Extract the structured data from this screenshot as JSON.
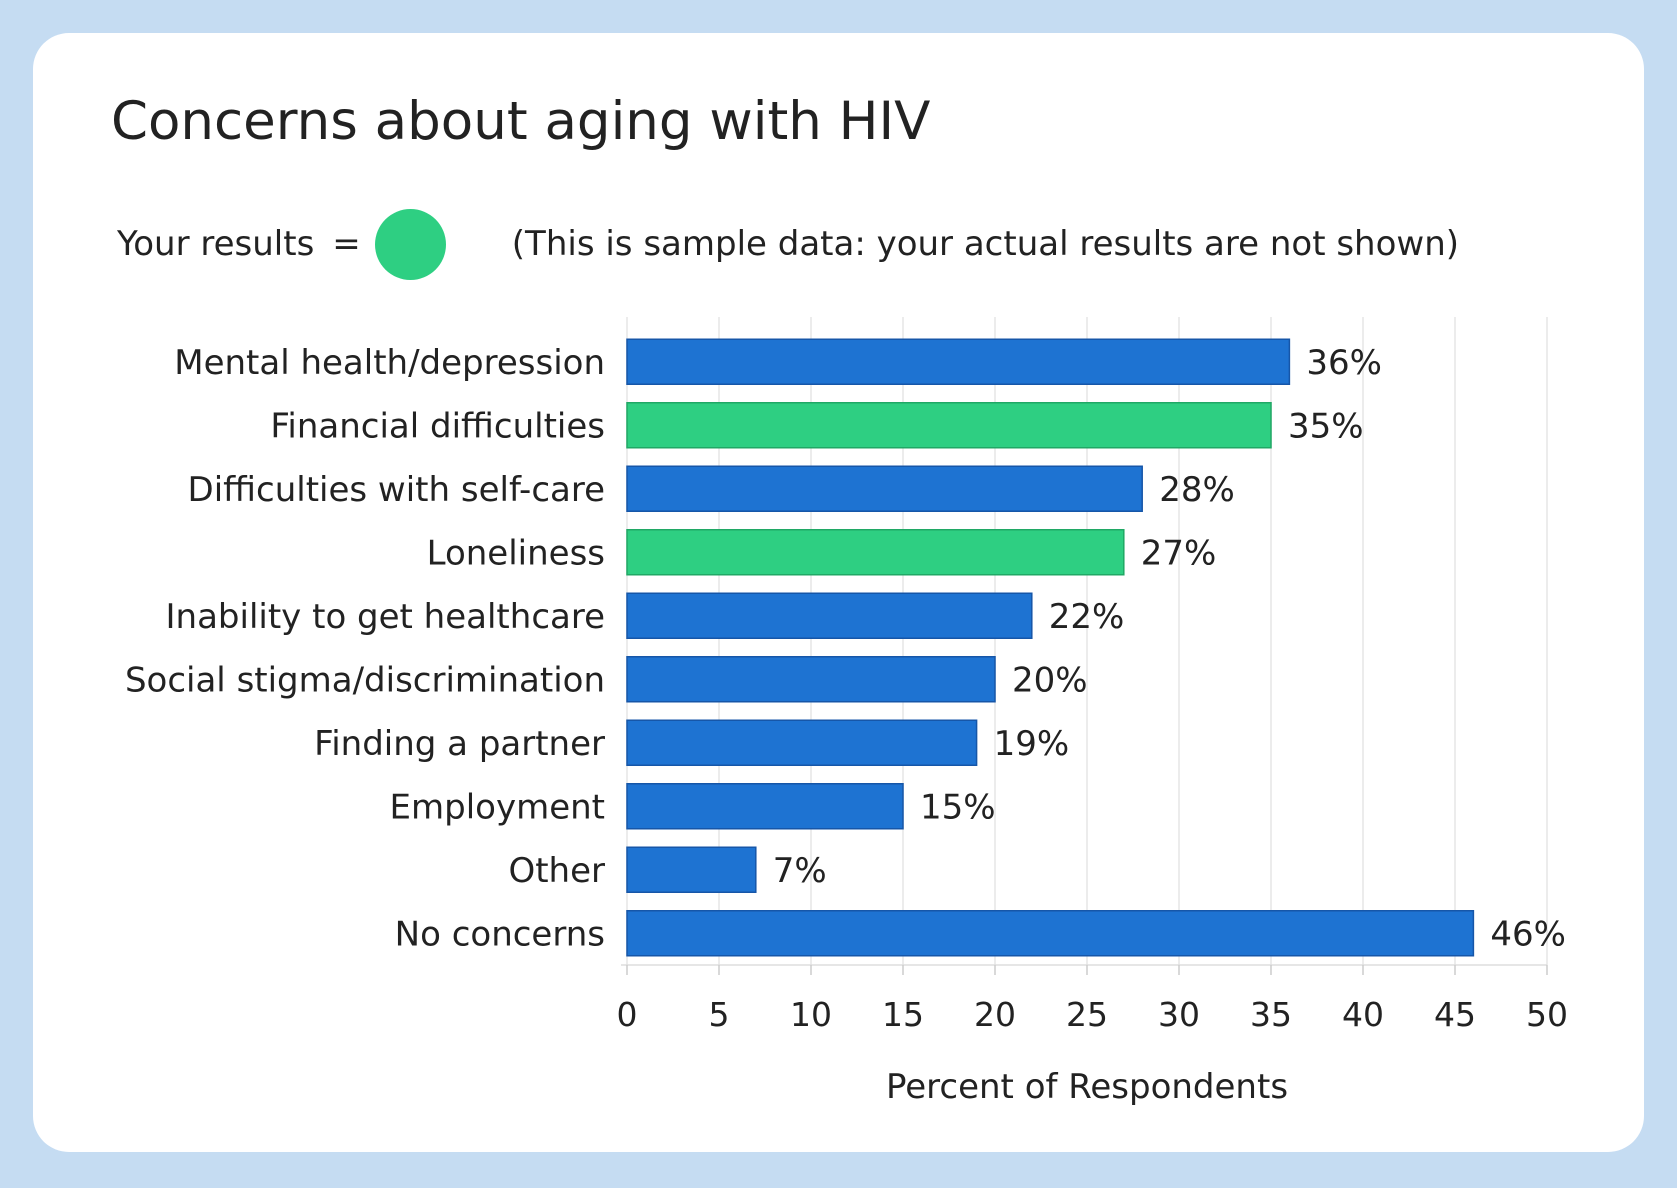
{
  "title": "Concerns about aging with HIV",
  "legend": {
    "label": "Your results",
    "equals": "=",
    "note": "(This is sample data: your actual results are not shown)"
  },
  "colors": {
    "blue": "#1e73d2",
    "blue_border": "#1656a8",
    "green": "#2ecf82",
    "green_border": "#20a865",
    "grid": "#e6e6e6"
  },
  "chart_data": {
    "type": "bar",
    "orientation": "horizontal",
    "xlabel": "Percent of Respondents",
    "xlim": [
      0,
      50
    ],
    "xticks": [
      0,
      5,
      10,
      15,
      20,
      25,
      30,
      35,
      40,
      45,
      50
    ],
    "grid": true,
    "categories": [
      "Mental health/depression",
      "Financial difficulties",
      "Difficulties with self-care",
      "Loneliness",
      "Inability to get healthcare",
      "Social stigma/discrimination",
      "Finding a partner",
      "Employment",
      "Other",
      "No concerns"
    ],
    "values": [
      36,
      35,
      28,
      27,
      22,
      20,
      19,
      15,
      7,
      46
    ],
    "value_labels": [
      "36%",
      "35%",
      "28%",
      "27%",
      "22%",
      "20%",
      "19%",
      "15%",
      "7%",
      "46%"
    ],
    "highlighted": [
      false,
      true,
      false,
      true,
      false,
      false,
      false,
      false,
      false,
      false
    ]
  }
}
